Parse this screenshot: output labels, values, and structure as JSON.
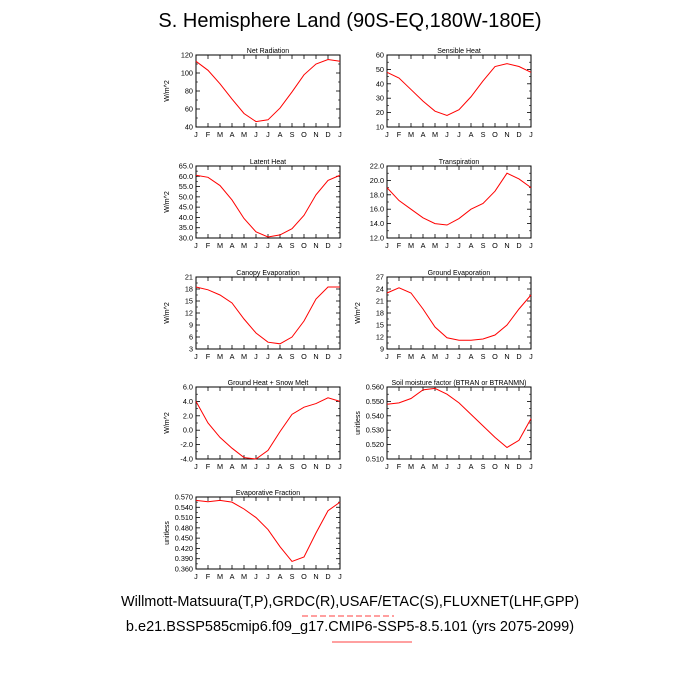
{
  "title": "S. Hemisphere Land (90S-EQ,180W-180E)",
  "footer": {
    "line1": "Willmott-Matsuura(T,P),GRDC(R),USAF/ETAC(S),FLUXNET(LHF,GPP)",
    "line2": "b.e21.BSSP585cmip6.f09_g17.CMIP6-SSP5-8.5.101 (yrs 2075-2099)"
  },
  "colors": {
    "series": "#ff0000",
    "axes": "#000000",
    "underline": "#ff0000"
  },
  "months": [
    "J",
    "F",
    "M",
    "A",
    "M",
    "J",
    "J",
    "A",
    "S",
    "O",
    "N",
    "D",
    "J"
  ],
  "chart_data": [
    {
      "type": "line",
      "title": "Net Radiation",
      "ylabel": "W/m^2",
      "ylim": [
        40,
        120
      ],
      "yticks": [
        "40",
        "60",
        "80",
        "100",
        "120"
      ],
      "x": [
        "J",
        "F",
        "M",
        "A",
        "M",
        "J",
        "J",
        "A",
        "S",
        "O",
        "N",
        "D",
        "J"
      ],
      "values": [
        113,
        103,
        88,
        71,
        55,
        46,
        48,
        61,
        79,
        98,
        110,
        115,
        113
      ]
    },
    {
      "type": "line",
      "title": "Sensible Heat",
      "ylabel": "",
      "ylim": [
        10,
        60
      ],
      "yticks": [
        "10",
        "20",
        "30",
        "40",
        "50",
        "60"
      ],
      "x": [
        "J",
        "F",
        "M",
        "A",
        "M",
        "J",
        "J",
        "A",
        "S",
        "O",
        "N",
        "D",
        "J"
      ],
      "values": [
        48,
        44,
        36,
        28,
        21,
        18,
        22,
        31,
        42,
        52,
        54,
        52,
        48
      ]
    },
    {
      "type": "line",
      "title": "Latent Heat",
      "ylabel": "W/m^2",
      "ylim": [
        30,
        65
      ],
      "yticks": [
        "30.0",
        "35.0",
        "40.0",
        "45.0",
        "50.0",
        "55.0",
        "60.0",
        "65.0"
      ],
      "x": [
        "J",
        "F",
        "M",
        "A",
        "M",
        "J",
        "J",
        "A",
        "S",
        "O",
        "N",
        "D",
        "J"
      ],
      "values": [
        60.5,
        59.5,
        55.5,
        48.5,
        39.5,
        33.0,
        30.5,
        31.5,
        34.5,
        41.0,
        51.0,
        58.0,
        60.5
      ]
    },
    {
      "type": "line",
      "title": "Transpiration",
      "ylabel": "",
      "ylim": [
        12,
        22
      ],
      "yticks": [
        "12.0",
        "14.0",
        "16.0",
        "18.0",
        "20.0",
        "22.0"
      ],
      "x": [
        "J",
        "F",
        "M",
        "A",
        "M",
        "J",
        "J",
        "A",
        "S",
        "O",
        "N",
        "D",
        "J"
      ],
      "values": [
        19.0,
        17.2,
        16.0,
        14.8,
        14.0,
        13.8,
        14.7,
        16.0,
        16.8,
        18.5,
        21.0,
        20.2,
        19.0
      ]
    },
    {
      "type": "line",
      "title": "Canopy Evaporation",
      "ylabel": "W/m^2",
      "ylim": [
        3,
        21
      ],
      "yticks": [
        "3",
        "6",
        "9",
        "12",
        "15",
        "18",
        "21"
      ],
      "x": [
        "J",
        "F",
        "M",
        "A",
        "M",
        "J",
        "J",
        "A",
        "S",
        "O",
        "N",
        "D",
        "J"
      ],
      "values": [
        18.5,
        17.8,
        16.5,
        14.5,
        10.5,
        7.0,
        4.7,
        4.3,
        6.0,
        10.0,
        15.5,
        18.5,
        18.5
      ]
    },
    {
      "type": "line",
      "title": "Ground Evaporation",
      "ylabel": "W/m^2",
      "ylim": [
        9,
        27
      ],
      "yticks": [
        "9",
        "12",
        "15",
        "18",
        "21",
        "24",
        "27"
      ],
      "x": [
        "J",
        "F",
        "M",
        "A",
        "M",
        "J",
        "J",
        "A",
        "S",
        "O",
        "N",
        "D",
        "J"
      ],
      "values": [
        23.0,
        24.3,
        23.0,
        19.0,
        14.5,
        11.8,
        11.2,
        11.2,
        11.5,
        12.5,
        15.0,
        19.0,
        22.5
      ]
    },
    {
      "type": "line",
      "title": "Ground Heat + Snow Melt",
      "ylabel": "W/m^2",
      "ylim": [
        -4,
        6
      ],
      "yticks": [
        "-4.0",
        "-2.0",
        "0.0",
        "2.0",
        "4.0",
        "6.0"
      ],
      "x": [
        "J",
        "F",
        "M",
        "A",
        "M",
        "J",
        "J",
        "A",
        "S",
        "O",
        "N",
        "D",
        "J"
      ],
      "values": [
        4.0,
        1.0,
        -1.0,
        -2.5,
        -3.8,
        -4.0,
        -2.8,
        -0.2,
        2.2,
        3.2,
        3.7,
        4.5,
        4.0
      ]
    },
    {
      "type": "line",
      "title": "Soil moisture factor (BTRAN or BTRANMN)",
      "ylabel": "unitless",
      "ylim": [
        0.51,
        0.56
      ],
      "yticks": [
        "0.510",
        "0.520",
        "0.530",
        "0.540",
        "0.550",
        "0.560"
      ],
      "x": [
        "J",
        "F",
        "M",
        "A",
        "M",
        "J",
        "J",
        "A",
        "S",
        "O",
        "N",
        "D",
        "J"
      ],
      "values": [
        0.548,
        0.549,
        0.552,
        0.558,
        0.559,
        0.555,
        0.549,
        0.541,
        0.533,
        0.525,
        0.518,
        0.523,
        0.538
      ]
    },
    {
      "type": "line",
      "title": "Evaporative Fraction",
      "ylabel": "unitless",
      "ylim": [
        0.36,
        0.57
      ],
      "yticks": [
        "0.360",
        "0.390",
        "0.420",
        "0.450",
        "0.480",
        "0.510",
        "0.540",
        "0.570"
      ],
      "x": [
        "J",
        "F",
        "M",
        "A",
        "M",
        "J",
        "J",
        "A",
        "S",
        "O",
        "N",
        "D",
        "J"
      ],
      "values": [
        0.56,
        0.556,
        0.56,
        0.555,
        0.535,
        0.51,
        0.475,
        0.425,
        0.382,
        0.395,
        0.465,
        0.53,
        0.555
      ]
    }
  ]
}
